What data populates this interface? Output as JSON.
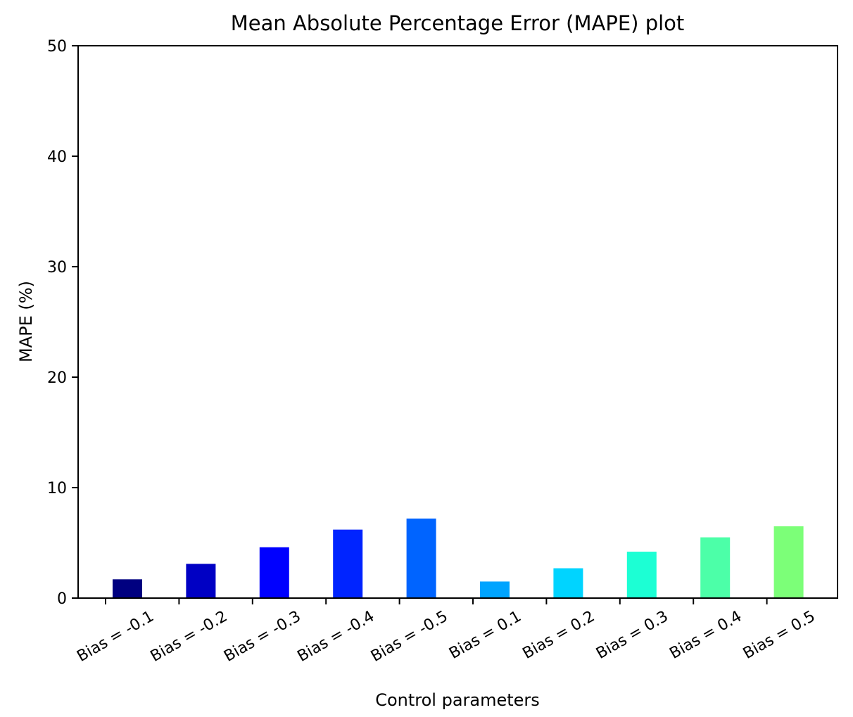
{
  "chart_data": {
    "type": "bar",
    "title": "Mean Absolute Percentage Error (MAPE) plot",
    "xlabel": "Control parameters",
    "ylabel": "MAPE (%)",
    "ylim": [
      0,
      50
    ],
    "yticks": [
      "0",
      "10",
      "20",
      "30",
      "40",
      "50"
    ],
    "categories": [
      "Bias = -0.1",
      "Bias = -0.2",
      "Bias = -0.3",
      "Bias = -0.4",
      "Bias = -0.5",
      "Bias = 0.1",
      "Bias = 0.2",
      "Bias = 0.3",
      "Bias = 0.4",
      "Bias = 0.5"
    ],
    "values": [
      1.7,
      3.1,
      4.6,
      6.2,
      7.2,
      1.5,
      2.7,
      4.2,
      5.5,
      6.5
    ],
    "colors": [
      "#000080",
      "#0000c4",
      "#0000ff",
      "#0024ff",
      "#0064ff",
      "#00a4ff",
      "#00d4ff",
      "#1cffd4",
      "#4cffa8",
      "#7cff78"
    ],
    "grid": false,
    "legend": "none"
  }
}
